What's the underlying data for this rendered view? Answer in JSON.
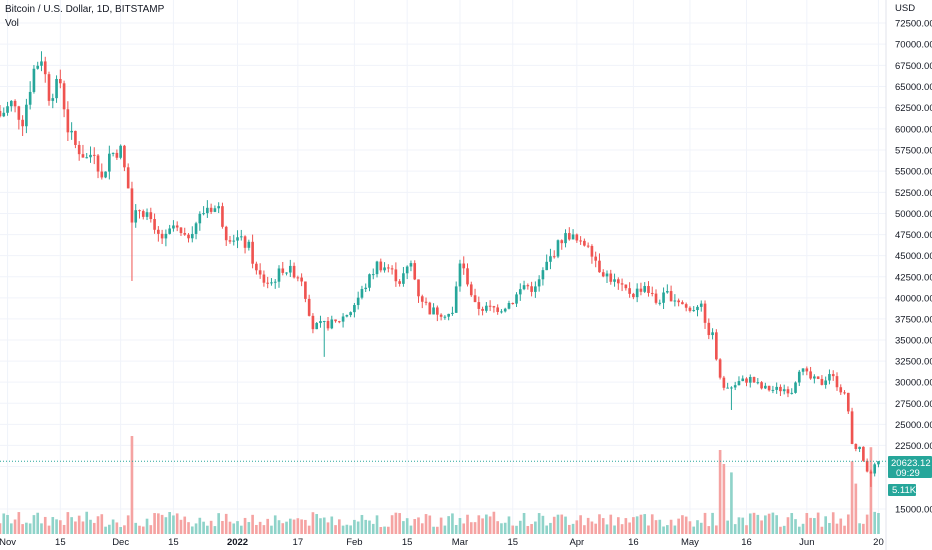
{
  "header": {
    "symbol": "Bitcoin / U.S. Dollar, 1D, BITSTAMP",
    "indicator": "Vol"
  },
  "price_axis": {
    "currency": "USD"
  },
  "last_price": {
    "value": "20623.12",
    "countdown": "09:29",
    "color": "#26a69a"
  },
  "volume_label": {
    "value": "5.11K",
    "color": "#26a69a"
  },
  "colors": {
    "up": "#26a69a",
    "down": "#ef5350",
    "up_vol": "#8fd3c9",
    "down_vol": "#f5a3a2",
    "grid": "#f0f3fa"
  },
  "chart_data": {
    "type": "candlestick",
    "title": "Bitcoin / U.S. Dollar, 1D, BITSTAMP",
    "ylabel": "USD",
    "ylim": [
      13500,
      75000
    ],
    "y_ticks": [
      "72500.00",
      "70000.00",
      "67500.00",
      "65000.00",
      "62500.00",
      "60000.00",
      "57500.00",
      "55000.00",
      "52500.00",
      "50000.00",
      "47500.00",
      "45000.00",
      "42500.00",
      "40000.00",
      "37500.00",
      "35000.00",
      "32500.00",
      "30000.00",
      "27500.00",
      "25000.00",
      "22500.00",
      "20000.00",
      "15000.00"
    ],
    "x_ticks": [
      {
        "label": "Nov",
        "date": "2021-11-01"
      },
      {
        "label": "15",
        "date": "2021-11-15"
      },
      {
        "label": "Dec",
        "date": "2021-12-01"
      },
      {
        "label": "15",
        "date": "2021-12-15"
      },
      {
        "label": "2022",
        "date": "2022-01-01",
        "bold": true
      },
      {
        "label": "17",
        "date": "2022-01-17"
      },
      {
        "label": "Feb",
        "date": "2022-02-01"
      },
      {
        "label": "15",
        "date": "2022-02-15"
      },
      {
        "label": "Mar",
        "date": "2022-03-01"
      },
      {
        "label": "15",
        "date": "2022-03-15"
      },
      {
        "label": "Apr",
        "date": "2022-04-01"
      },
      {
        "label": "16",
        "date": "2022-04-16"
      },
      {
        "label": "May",
        "date": "2022-05-01"
      },
      {
        "label": "16",
        "date": "2022-05-16"
      },
      {
        "label": "Jun",
        "date": "2022-06-01"
      },
      {
        "label": "20",
        "date": "2022-06-20"
      }
    ],
    "x_range": [
      "2021-10-30",
      "2022-06-22"
    ],
    "close_anchors": [
      [
        "2021-10-30",
        61500
      ],
      [
        "2021-11-02",
        63000
      ],
      [
        "2021-11-05",
        61000
      ],
      [
        "2021-11-08",
        67000
      ],
      [
        "2021-11-10",
        68500
      ],
      [
        "2021-11-12",
        64000
      ],
      [
        "2021-11-15",
        65500
      ],
      [
        "2021-11-17",
        60000
      ],
      [
        "2021-11-19",
        58000
      ],
      [
        "2021-11-22",
        56500
      ],
      [
        "2021-11-24",
        57500
      ],
      [
        "2021-11-26",
        54000
      ],
      [
        "2021-11-28",
        57000
      ],
      [
        "2021-12-01",
        57500
      ],
      [
        "2021-12-03",
        53000
      ],
      [
        "2021-12-04",
        49000
      ],
      [
        "2021-12-06",
        50500
      ],
      [
        "2021-12-08",
        50000
      ],
      [
        "2021-12-10",
        47500
      ],
      [
        "2021-12-13",
        47000
      ],
      [
        "2021-12-15",
        48500
      ],
      [
        "2021-12-18",
        46800
      ],
      [
        "2021-12-21",
        49000
      ],
      [
        "2021-12-24",
        50800
      ],
      [
        "2021-12-27",
        50500
      ],
      [
        "2021-12-29",
        47500
      ],
      [
        "2022-01-01",
        47000
      ],
      [
        "2022-01-04",
        46000
      ],
      [
        "2022-01-06",
        43000
      ],
      [
        "2022-01-08",
        42000
      ],
      [
        "2022-01-10",
        41800
      ],
      [
        "2022-01-13",
        43500
      ],
      [
        "2022-01-16",
        43000
      ],
      [
        "2022-01-18",
        42300
      ],
      [
        "2022-01-21",
        36500
      ],
      [
        "2022-01-24",
        36800
      ],
      [
        "2022-01-27",
        37000
      ],
      [
        "2022-01-31",
        38500
      ],
      [
        "2022-02-04",
        41500
      ],
      [
        "2022-02-07",
        44000
      ],
      [
        "2022-02-10",
        43500
      ],
      [
        "2022-02-13",
        42000
      ],
      [
        "2022-02-16",
        44000
      ],
      [
        "2022-02-18",
        40500
      ],
      [
        "2022-02-21",
        38500
      ],
      [
        "2022-02-24",
        38300
      ],
      [
        "2022-02-27",
        38000
      ],
      [
        "2022-03-01",
        44300
      ],
      [
        "2022-03-03",
        42000
      ],
      [
        "2022-03-05",
        39000
      ],
      [
        "2022-03-08",
        38700
      ],
      [
        "2022-03-12",
        38800
      ],
      [
        "2022-03-15",
        39700
      ],
      [
        "2022-03-18",
        41500
      ],
      [
        "2022-03-21",
        41000
      ],
      [
        "2022-03-24",
        44000
      ],
      [
        "2022-03-28",
        47000
      ],
      [
        "2022-03-30",
        47500
      ],
      [
        "2022-04-02",
        46200
      ],
      [
        "2022-04-04",
        46600
      ],
      [
        "2022-04-07",
        43500
      ],
      [
        "2022-04-10",
        42300
      ],
      [
        "2022-04-13",
        41000
      ],
      [
        "2022-04-16",
        40500
      ],
      [
        "2022-04-19",
        41500
      ],
      [
        "2022-04-22",
        39500
      ],
      [
        "2022-04-25",
        40400
      ],
      [
        "2022-04-28",
        39700
      ],
      [
        "2022-05-01",
        38400
      ],
      [
        "2022-05-04",
        39700
      ],
      [
        "2022-05-05",
        36500
      ],
      [
        "2022-05-07",
        35500
      ],
      [
        "2022-05-09",
        30200
      ],
      [
        "2022-05-11",
        29000
      ],
      [
        "2022-05-14",
        30000
      ],
      [
        "2022-05-17",
        30400
      ],
      [
        "2022-05-20",
        29300
      ],
      [
        "2022-05-23",
        29100
      ],
      [
        "2022-05-26",
        29200
      ],
      [
        "2022-05-28",
        29000
      ],
      [
        "2022-05-30",
        31700
      ],
      [
        "2022-06-02",
        30400
      ],
      [
        "2022-06-05",
        29900
      ],
      [
        "2022-06-07",
        31100
      ],
      [
        "2022-06-10",
        29100
      ],
      [
        "2022-06-11",
        28400
      ],
      [
        "2022-06-12",
        26600
      ],
      [
        "2022-06-13",
        22400
      ],
      [
        "2022-06-14",
        22100
      ],
      [
        "2022-06-15",
        22600
      ],
      [
        "2022-06-16",
        20400
      ],
      [
        "2022-06-18",
        19000
      ],
      [
        "2022-06-19",
        20500
      ],
      [
        "2022-06-20",
        20623.12
      ]
    ],
    "volume_spikes": [
      [
        "2021-12-04",
        3.5
      ],
      [
        "2022-05-09",
        3.0
      ],
      [
        "2022-05-10",
        2.5
      ],
      [
        "2022-05-12",
        2.2
      ],
      [
        "2022-06-13",
        2.6
      ],
      [
        "2022-06-14",
        1.8
      ],
      [
        "2022-06-18",
        3.1
      ]
    ],
    "wick_extremes": [
      [
        "2021-12-04",
        42000,
        "low"
      ],
      [
        "2022-01-24",
        33000,
        "low"
      ],
      [
        "2022-05-12",
        26700,
        "low"
      ],
      [
        "2022-06-18",
        17600,
        "low"
      ]
    ]
  }
}
